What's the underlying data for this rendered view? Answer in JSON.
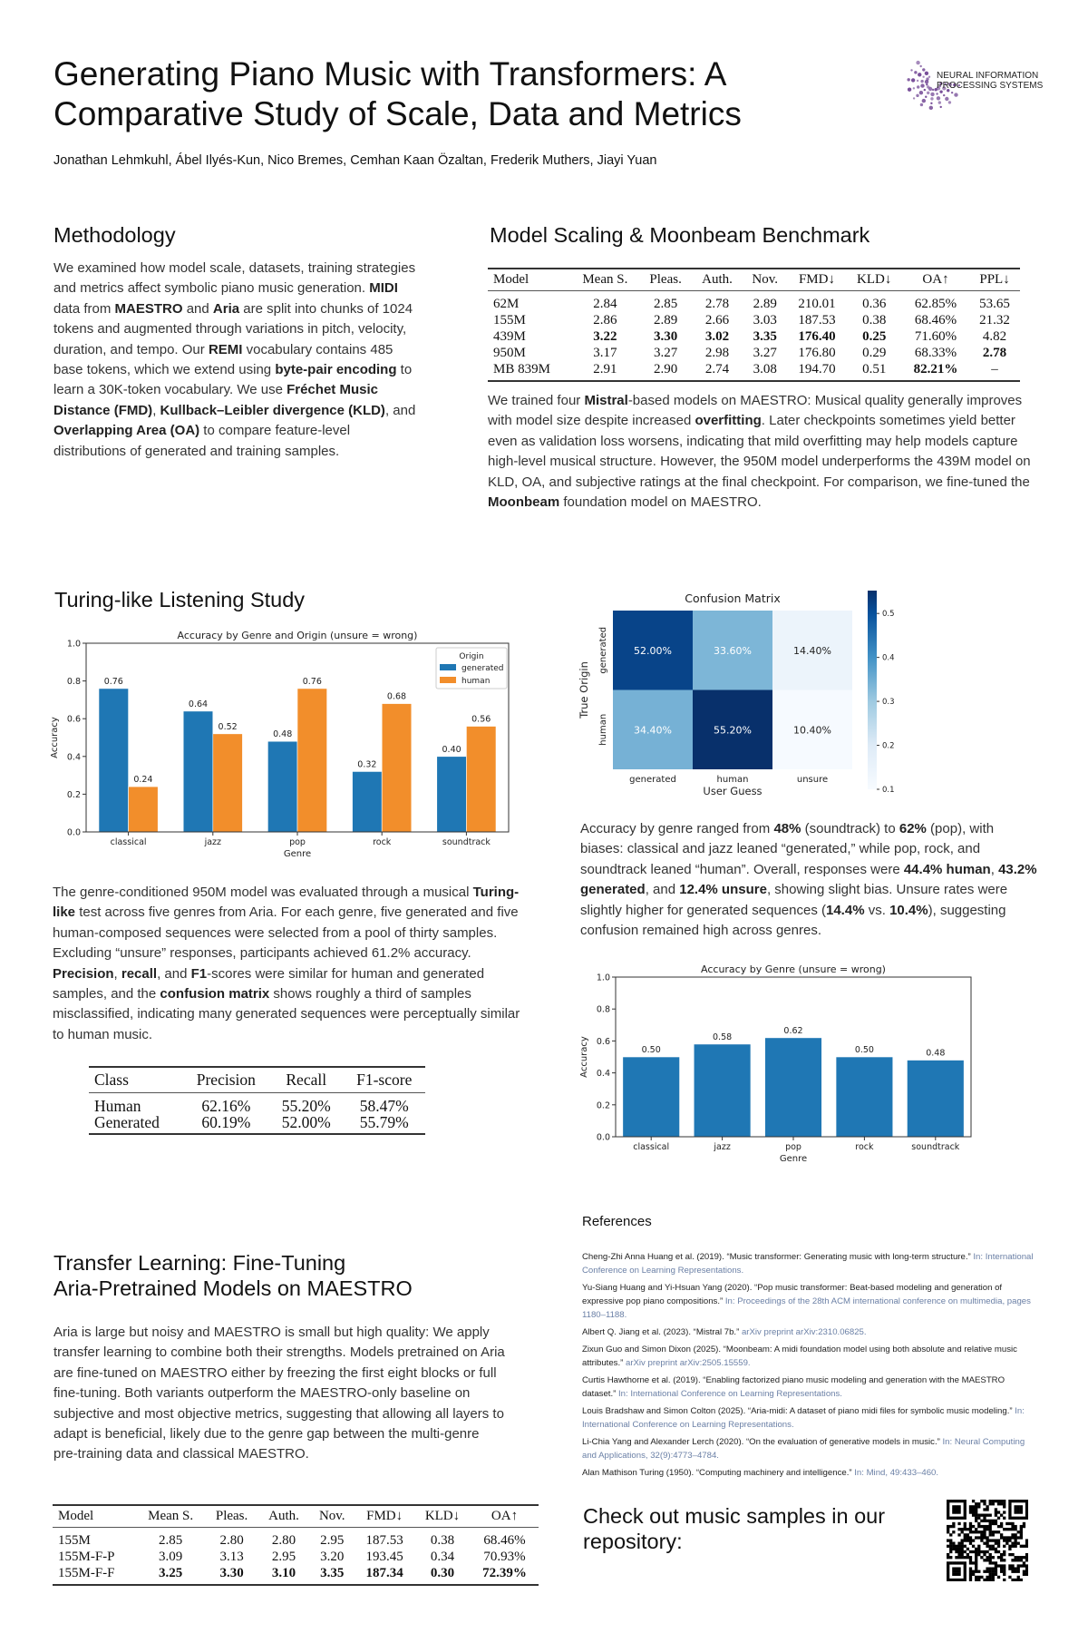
{
  "header": {
    "title": "Generating Piano Music with Transformers: A Comparative Study of Scale, Data and Metrics",
    "authors": "Jonathan Lehmkuhl, Ábel Ilyés-Kun, Nico Bremes, Cemhan Kaan Özaltan, Frederik Muthers, Jiayi Yuan",
    "logo": {
      "line1": "NEURAL INFORMATION",
      "line2": "PROCESSING SYSTEMS",
      "color": "#6a3d8f"
    }
  },
  "methodology": {
    "heading": "Methodology",
    "text": [
      [
        "We examined how model scale, datasets, training strategies and metrics affect symbolic piano music generation. ",
        0
      ],
      [
        "MIDI",
        1
      ],
      [
        " data from ",
        0
      ],
      [
        "MAESTRO",
        1
      ],
      [
        " and ",
        0
      ],
      [
        "Aria",
        1
      ],
      [
        " are split into chunks of 1024 tokens and augmented through variations in pitch, velocity, duration, and tempo. Our ",
        0
      ],
      [
        "REMI",
        1
      ],
      [
        " vocabulary contains 485 base tokens, which we extend using ",
        0
      ],
      [
        "byte-pair encoding",
        1
      ],
      [
        " to learn a 30K-token vocabulary. We use ",
        0
      ],
      [
        "Fréchet Music Distance (FMD)",
        1
      ],
      [
        ", ",
        0
      ],
      [
        "Kullback–Leibler divergence (KLD)",
        1
      ],
      [
        ", and ",
        0
      ],
      [
        "Overlapping Area (OA)",
        1
      ],
      [
        " to compare feature-level distributions of generated and training samples.",
        0
      ]
    ]
  },
  "scaling": {
    "heading": "Model Scaling & Moonbeam Benchmark",
    "table": {
      "columns": [
        "Model",
        "Mean S.",
        "Pleas.",
        "Auth.",
        "Nov.",
        "FMD↓",
        "KLD↓",
        "OA↑",
        "PPL↓"
      ],
      "rows": [
        [
          "62M",
          "2.84",
          "2.85",
          "2.78",
          "2.89",
          "210.01",
          "0.36",
          "62.85%",
          "53.65"
        ],
        [
          "155M",
          "2.86",
          "2.89",
          "2.66",
          "3.03",
          "187.53",
          "0.38",
          "68.46%",
          "21.32"
        ],
        [
          "439M",
          "3.22",
          "3.30",
          "3.02",
          "3.35",
          "176.40",
          "0.25",
          "71.60%",
          "4.82"
        ],
        [
          "950M",
          "3.17",
          "3.27",
          "2.98",
          "3.27",
          "176.80",
          "0.29",
          "68.33%",
          "2.78"
        ],
        [
          "MB 839M",
          "2.91",
          "2.90",
          "2.74",
          "3.08",
          "194.70",
          "0.51",
          "82.21%",
          "–"
        ]
      ],
      "bold_cells": [
        [
          2,
          1
        ],
        [
          2,
          2
        ],
        [
          2,
          3
        ],
        [
          2,
          4
        ],
        [
          2,
          5
        ],
        [
          2,
          6
        ],
        [
          3,
          8
        ],
        [
          4,
          7
        ]
      ]
    },
    "text": [
      [
        "We trained four ",
        0
      ],
      [
        "Mistral",
        1
      ],
      [
        "-based models on MAESTRO: Musical quality generally improves with model size despite increased ",
        0
      ],
      [
        "overfitting",
        1
      ],
      [
        ". Later checkpoints sometimes yield better even as validation loss worsens, indicating that mild overfitting may help models capture high-level musical structure. However, the 950M model underperforms the 439M model on KLD, OA, and subjective ratings at the final checkpoint. For comparison, we fine-tuned the ",
        0
      ],
      [
        "Moonbeam",
        1
      ],
      [
        " foundation model on MAESTRO.",
        0
      ]
    ]
  },
  "turing": {
    "heading": "Turing-like Listening Study",
    "text": [
      [
        "The genre-conditioned 950M model was evaluated through a musical ",
        0
      ],
      [
        "Turing-like",
        1
      ],
      [
        " test across five genres from Aria. For each genre, five generated and five human-composed sequences were selected from a pool of thirty samples. Excluding “unsure” responses, participants achieved 61.2% accuracy. ",
        0
      ],
      [
        "Precision",
        1
      ],
      [
        ", ",
        0
      ],
      [
        "recall",
        1
      ],
      [
        ", and ",
        0
      ],
      [
        "F1",
        1
      ],
      [
        "-scores were similar for human and generated samples, and the ",
        0
      ],
      [
        "confusion matrix",
        1
      ],
      [
        " shows roughly a third of samples misclassified, indicating many generated sequences were perceptually similar to human music.",
        0
      ]
    ],
    "table": {
      "columns": [
        "Class",
        "Precision",
        "Recall",
        "F1-score"
      ],
      "rows": [
        [
          "Human",
          "62.16%",
          "55.20%",
          "58.47%"
        ],
        [
          "Generated",
          "60.19%",
          "52.00%",
          "55.79%"
        ]
      ]
    },
    "analysis": [
      [
        "Accuracy by genre ranged from ",
        0
      ],
      [
        "48%",
        1
      ],
      [
        " (soundtrack) to ",
        0
      ],
      [
        "62%",
        1
      ],
      [
        " (pop), with biases: classical and jazz leaned “generated,” while pop, rock, and soundtrack leaned “human”. Overall, responses were ",
        0
      ],
      [
        "44.4% human",
        1
      ],
      [
        ", ",
        0
      ],
      [
        "43.2% generated",
        1
      ],
      [
        ", and ",
        0
      ],
      [
        "12.4% unsure",
        1
      ],
      [
        ", showing slight bias. Unsure rates were slightly higher for generated sequences (",
        0
      ],
      [
        "14.4%",
        1
      ],
      [
        " vs. ",
        0
      ],
      [
        "10.4%",
        1
      ],
      [
        "), suggesting confusion remained high across genres.",
        0
      ]
    ]
  },
  "chart_data": [
    {
      "type": "bar",
      "title": "Accuracy by Genre and Origin (unsure = wrong)",
      "xlabel": "Genre",
      "ylabel": "Accuracy",
      "ylim": [
        0,
        1.0
      ],
      "yticks": [
        "0.0",
        "0.2",
        "0.4",
        "0.6",
        "0.8",
        "1.0"
      ],
      "categories": [
        "classical",
        "jazz",
        "pop",
        "rock",
        "soundtrack"
      ],
      "legend": {
        "title": "Origin",
        "position": "top-right"
      },
      "series": [
        {
          "name": "generated",
          "color": "#1f77b4",
          "values": [
            0.76,
            0.64,
            0.48,
            0.32,
            0.4
          ],
          "labels": [
            "0.76",
            "0.64",
            "0.48",
            "0.32",
            "0.40"
          ]
        },
        {
          "name": "human",
          "color": "#f28e2b",
          "values": [
            0.24,
            0.52,
            0.76,
            0.68,
            0.56
          ],
          "labels": [
            "0.24",
            "0.52",
            "0.76",
            "0.68",
            "0.56"
          ]
        }
      ]
    },
    {
      "type": "heatmap",
      "title": "Confusion Matrix",
      "xlabel": "User Guess",
      "ylabel": "True Origin",
      "x_categories": [
        "generated",
        "human",
        "unsure"
      ],
      "y_categories": [
        "generated",
        "human"
      ],
      "values": [
        [
          0.52,
          0.336,
          0.144
        ],
        [
          0.344,
          0.552,
          0.104
        ]
      ],
      "labels": [
        [
          "52.00%",
          "33.60%",
          "14.40%"
        ],
        [
          "34.40%",
          "55.20%",
          "10.40%"
        ]
      ],
      "colorbar": {
        "ticks": [
          "0.1",
          "0.2",
          "0.3",
          "0.4",
          "0.5"
        ],
        "range": [
          0.1,
          0.552
        ],
        "colormap": "Blues"
      }
    },
    {
      "type": "bar",
      "title": "Accuracy by Genre (unsure = wrong)",
      "xlabel": "Genre",
      "ylabel": "Accuracy",
      "ylim": [
        0,
        1.0
      ],
      "yticks": [
        "0.0",
        "0.2",
        "0.4",
        "0.6",
        "0.8",
        "1.0"
      ],
      "categories": [
        "classical",
        "jazz",
        "pop",
        "rock",
        "soundtrack"
      ],
      "series": [
        {
          "color": "#1f77b4",
          "values": [
            0.5,
            0.58,
            0.62,
            0.5,
            0.48
          ],
          "labels": [
            "0.50",
            "0.58",
            "0.62",
            "0.50",
            "0.48"
          ]
        }
      ]
    }
  ],
  "references": {
    "heading": "References",
    "items": [
      {
        "main": "Cheng-Zhi Anna Huang et al. (2019). “Music transformer: Generating music with long-term structure.”",
        "venue": "In: International Conference on Learning Representations."
      },
      {
        "main": "Yu-Siang Huang and Yi-Hsuan Yang (2020). “Pop music transformer: Beat-based modeling and generation of expressive pop piano compositions.”",
        "venue": "In: Proceedings of the 28th ACM international conference on multimedia, pages 1180–1188."
      },
      {
        "main": "Albert Q. Jiang et al. (2023). “Mistral 7b.”",
        "venue": "arXiv preprint arXiv:2310.06825."
      },
      {
        "main": "Zixun Guo and Simon Dixon (2025). “Moonbeam: A midi foundation model using both absolute and relative music attributes.”",
        "venue": "arXiv preprint arXiv:2505.15559."
      },
      {
        "main": "Curtis Hawthorne et al. (2019). “Enabling factorized piano music modeling and generation with the MAESTRO dataset.”",
        "venue": "In: International Conference on Learning Representations."
      },
      {
        "main": "Louis Bradshaw and Simon Colton (2025). “Aria-midi: A dataset of piano midi files for symbolic music modeling.”",
        "venue": "In: International Conference on Learning Representations."
      },
      {
        "main": "Li-Chia Yang and Alexander Lerch (2020). “On the evaluation of generative models in music.”",
        "venue": "In: Neural Computing and Applications, 32(9):4773–4784."
      },
      {
        "main": "Alan Mathison Turing (1950). “Computing machinery and intelligence.”",
        "venue": "In: Mind, 49:433–460."
      }
    ]
  },
  "transfer": {
    "heading_line1": "Transfer Learning: Fine-Tuning",
    "heading_line2": "Aria-Pretrained Models on MAESTRO",
    "text": [
      [
        "Aria is large but noisy and MAESTRO is small but high quality: We apply transfer learning to combine both their strengths. Models pretrained on Aria  are fine-tuned on MAESTRO either by freezing the first eight blocks or full fine-tuning. Both variants outperform the MAESTRO-only baseline on subjective and most objective metrics, suggesting that allowing all layers to adapt is beneficial, likely due to the genre gap between the multi-genre pre-training data and classical MAESTRO.",
        0
      ]
    ],
    "table": {
      "columns": [
        "Model",
        "Mean S.",
        "Pleas.",
        "Auth.",
        "Nov.",
        "FMD↓",
        "KLD↓",
        "OA↑"
      ],
      "rows": [
        [
          "155M",
          "2.85",
          "2.80",
          "2.80",
          "2.95",
          "187.53",
          "0.38",
          "68.46%"
        ],
        [
          "155M-F-P",
          "3.09",
          "3.13",
          "2.95",
          "3.20",
          "193.45",
          "0.34",
          "70.93%"
        ],
        [
          "155M-F-F",
          "3.25",
          "3.30",
          "3.10",
          "3.35",
          "187.34",
          "0.30",
          "72.39%"
        ]
      ],
      "bold_cells": [
        [
          2,
          1
        ],
        [
          2,
          2
        ],
        [
          2,
          3
        ],
        [
          2,
          4
        ],
        [
          2,
          5
        ],
        [
          2,
          6
        ],
        [
          2,
          7
        ]
      ]
    }
  },
  "samples": {
    "text": "Check out music samples in our repository:",
    "qr_icon": "qr-code-icon"
  }
}
